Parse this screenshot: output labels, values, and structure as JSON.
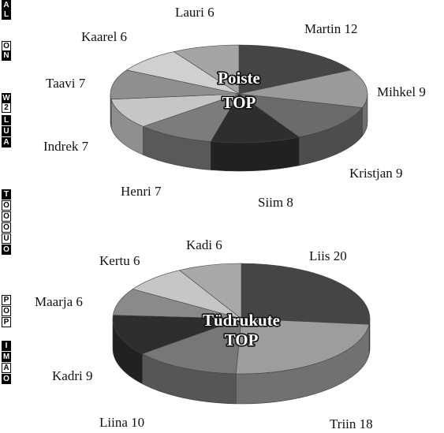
{
  "edge_glyphs": [
    {
      "char": "A",
      "style": "dark"
    },
    {
      "char": "L",
      "style": "dark"
    },
    {
      "char": "O",
      "style": "light"
    },
    {
      "char": "N",
      "style": "dark"
    },
    {
      "char": "W",
      "style": "dark"
    },
    {
      "char": "2",
      "style": "light"
    },
    {
      "char": "L",
      "style": "dark"
    },
    {
      "char": "U",
      "style": "dark"
    },
    {
      "char": "A",
      "style": "dark"
    },
    {
      "char": "T",
      "style": "dark"
    },
    {
      "char": "O",
      "style": "light"
    },
    {
      "char": "O",
      "style": "light"
    },
    {
      "char": "O",
      "style": "light"
    },
    {
      "char": "U",
      "style": "light"
    },
    {
      "char": "O",
      "style": "dark"
    },
    {
      "char": "P",
      "style": "light"
    },
    {
      "char": "O",
      "style": "light"
    },
    {
      "char": "P",
      "style": "light"
    },
    {
      "char": "I",
      "style": "dark"
    },
    {
      "char": "M",
      "style": "dark"
    },
    {
      "char": "A",
      "style": "light"
    },
    {
      "char": "O",
      "style": "dark"
    }
  ],
  "chart_data": [
    {
      "type": "pie",
      "title": "Poiste TOP",
      "title_lines": [
        "Poiste",
        "TOP"
      ],
      "slices": [
        {
          "name": "Martin",
          "value": 12,
          "label": "Martin 12",
          "color": "#454545"
        },
        {
          "name": "Mihkel",
          "value": 9,
          "label": "Mihkel 9",
          "color": "#9a9a9a"
        },
        {
          "name": "Kristjan",
          "value": 9,
          "label": "Kristjan 9",
          "color": "#6b6b6b"
        },
        {
          "name": "Siim",
          "value": 8,
          "label": "Siim 8",
          "color": "#2e2e2e"
        },
        {
          "name": "Henri",
          "value": 7,
          "label": "Henri 7",
          "color": "#7c7c7c"
        },
        {
          "name": "Indrek",
          "value": 7,
          "label": "Indrek 7",
          "color": "#c6c6c6"
        },
        {
          "name": "Taavi",
          "value": 7,
          "label": "Taavi 7",
          "color": "#8f8f8f"
        },
        {
          "name": "Kaarel",
          "value": 6,
          "label": "Kaarel 6",
          "color": "#d0d0d0"
        },
        {
          "name": "Lauri",
          "value": 6,
          "label": "Lauri 6",
          "color": "#a5a5a5"
        }
      ]
    },
    {
      "type": "pie",
      "title": "Tüdrukute TOP",
      "title_lines": [
        "Tüdrukute",
        "TOP"
      ],
      "slices": [
        {
          "name": "Liis",
          "value": 20,
          "label": "Liis 20",
          "color": "#454545"
        },
        {
          "name": "Triin",
          "value": 18,
          "label": "Triin 18",
          "color": "#9d9d9d"
        },
        {
          "name": "Liina",
          "value": 10,
          "label": "Liina 10",
          "color": "#777777"
        },
        {
          "name": "Kadri",
          "value": 9,
          "label": "Kadri 9",
          "color": "#2e2e2e"
        },
        {
          "name": "Maarja",
          "value": 6,
          "label": "Maarja 6",
          "color": "#8a8a8a"
        },
        {
          "name": "Kertu",
          "value": 6,
          "label": "Kertu 6",
          "color": "#c6c6c6"
        },
        {
          "name": "Kadi",
          "value": 6,
          "label": "Kadi 6",
          "color": "#a8a8a8"
        }
      ]
    }
  ]
}
